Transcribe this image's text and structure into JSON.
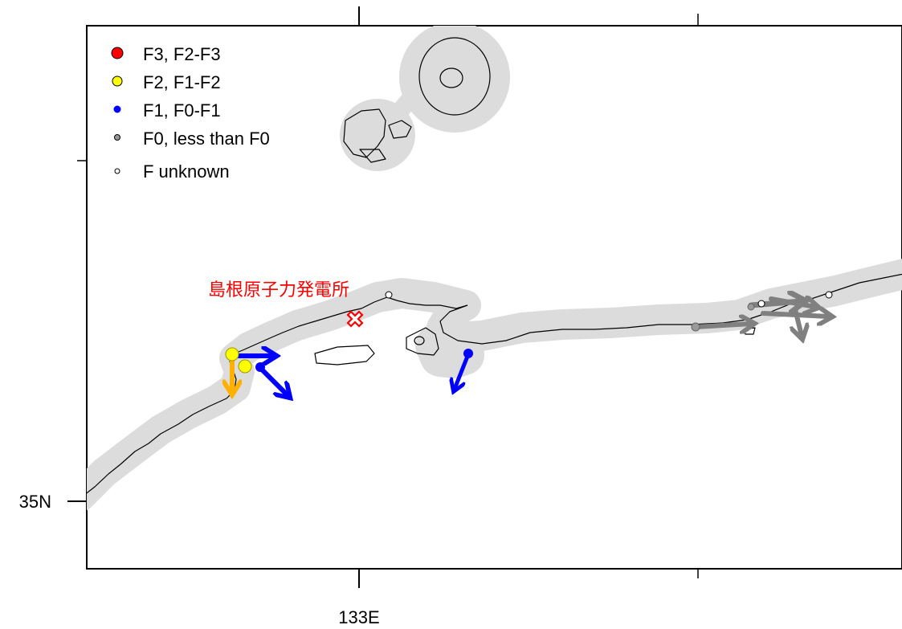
{
  "axes": {
    "lon_label": "133E",
    "lat_label": "35N"
  },
  "legend": {
    "items": [
      {
        "label": "F3, F2-F3",
        "color": "#ff0000",
        "size": "large"
      },
      {
        "label": "F2, F1-F2",
        "color": "#ffff00",
        "size": "medium"
      },
      {
        "label": "F1, F0-F1",
        "color": "#0000ff",
        "size": "small"
      },
      {
        "label": "F0, less than F0",
        "color": "#999999",
        "size": "small"
      },
      {
        "label": "F unknown",
        "color": "#ffffff",
        "size": "small"
      }
    ]
  },
  "site": {
    "label": "島根原子力発電所",
    "marker_color": "#ff0000",
    "marker_icon": "cross-mark-icon"
  },
  "colors": {
    "buffer": "#dcdcdc",
    "coast": "#000000",
    "track_f2": "#ffb000",
    "track_f1": "#0000ff",
    "track_f0": "#808080"
  },
  "events": [
    {
      "class": "F2, F1-F2",
      "direction": "south"
    },
    {
      "class": "F1, F0-F1",
      "direction": "east"
    },
    {
      "class": "F2, F1-F2",
      "direction": "none"
    },
    {
      "class": "F1, F0-F1",
      "direction": "southeast"
    },
    {
      "class": "F1, F0-F1",
      "direction": "southwest"
    },
    {
      "class": "F0, less than F0",
      "direction": "east"
    },
    {
      "class": "F0, less than F0",
      "direction": "east"
    },
    {
      "class": "F0, less than F0",
      "direction": "east"
    },
    {
      "class": "F0, less than F0",
      "direction": "east"
    },
    {
      "class": "F0, less than F0",
      "direction": "south"
    },
    {
      "class": "F unknown",
      "direction": "none"
    },
    {
      "class": "F unknown",
      "direction": "none"
    }
  ]
}
